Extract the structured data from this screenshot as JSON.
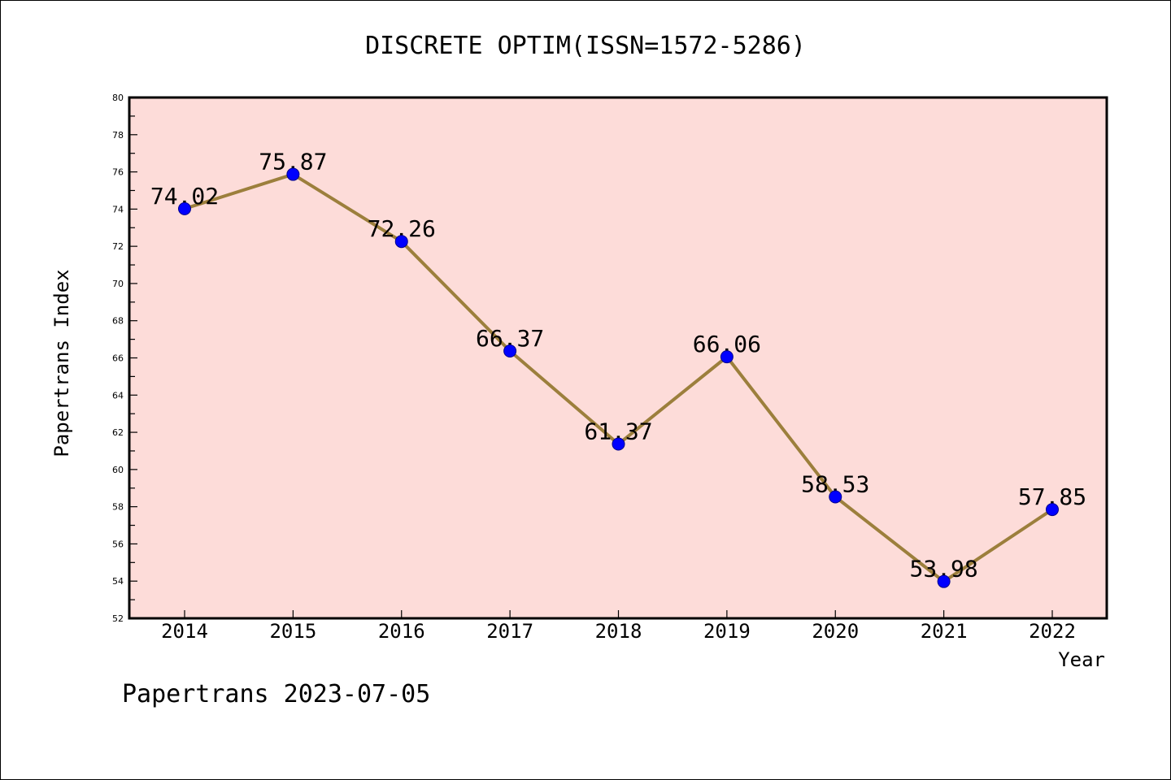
{
  "chart_data": {
    "type": "line",
    "title": "DISCRETE OPTIM(ISSN=1572-5286)",
    "xlabel": "Year",
    "ylabel": "Papertrans Index",
    "categories": [
      "2014",
      "2015",
      "2016",
      "2017",
      "2018",
      "2019",
      "2020",
      "2021",
      "2022"
    ],
    "series": [
      {
        "values": [
          74.02,
          75.87,
          72.26,
          66.37,
          61.37,
          66.06,
          58.53,
          53.98,
          57.85
        ],
        "labels": [
          "74.02",
          "75.87",
          "72.26",
          "66.37",
          "61.37",
          "66.06",
          "58.53",
          "53.98",
          "57.85"
        ]
      }
    ],
    "ylim": [
      52,
      80
    ],
    "yticks": [
      "52",
      "54",
      "56",
      "58",
      "60",
      "62",
      "64",
      "66",
      "68",
      "70",
      "72",
      "74",
      "76",
      "78",
      "80"
    ],
    "grid": false,
    "colors": {
      "plot_background": "#fddcd9",
      "line": "#9c7f3c",
      "marker": "#0000ff"
    }
  },
  "footer": "Papertrans 2023-07-05"
}
